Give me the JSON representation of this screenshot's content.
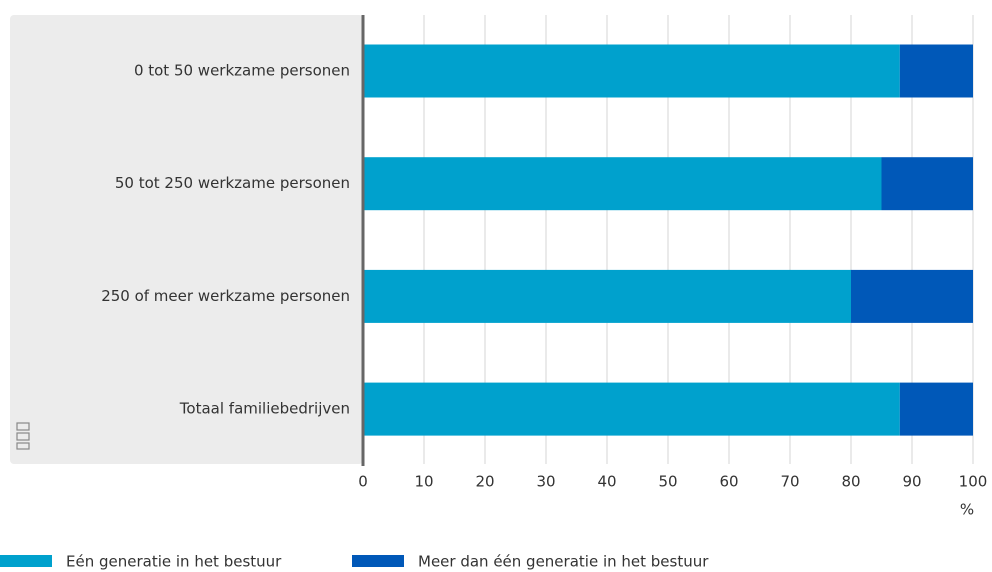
{
  "chart_data": {
    "type": "stacked_barh",
    "categories": [
      "0 tot 50 werkzame personen",
      "50 tot 250 werkzame personen",
      "250 of meer werkzame personen",
      "Totaal familiebedrijven"
    ],
    "series": [
      {
        "name": "Eén generatie in het bestuur",
        "color": "#00a1cd",
        "values": [
          88,
          85,
          80,
          88
        ]
      },
      {
        "name": "Meer dan één generatie in het bestuur",
        "color": "#0058b8",
        "values": [
          12,
          15,
          20,
          12
        ]
      }
    ],
    "xlim": [
      0,
      100
    ],
    "xticks": [
      0,
      10,
      20,
      30,
      40,
      50,
      60,
      70,
      80,
      90,
      100
    ],
    "xlabel": "%",
    "grid": true
  }
}
